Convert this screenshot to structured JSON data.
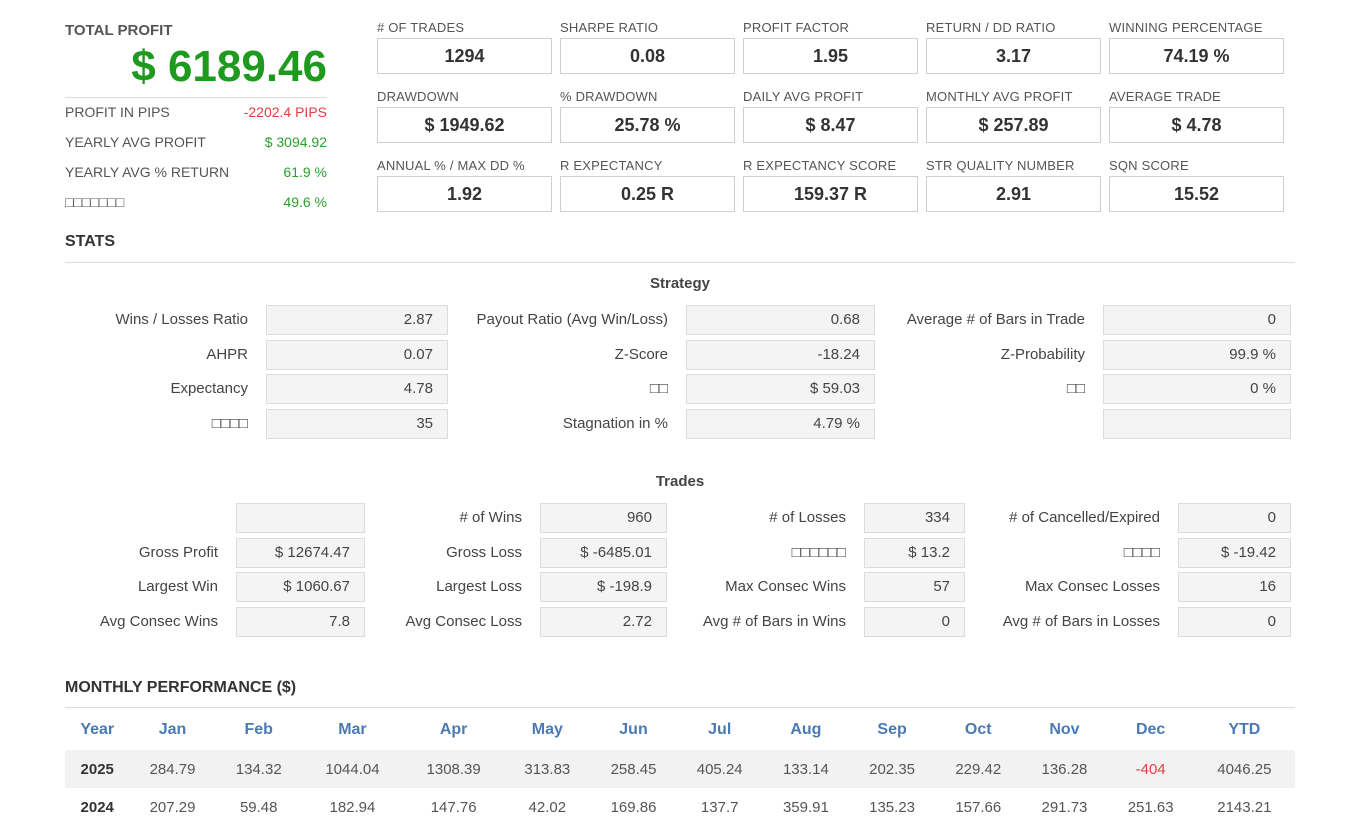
{
  "summary": {
    "total_profit_label": "TOTAL PROFIT",
    "total_profit_value": "$ 6189.46",
    "rows": [
      {
        "label": "PROFIT IN PIPS",
        "value": "-2202.4 PIPS",
        "color": "red"
      },
      {
        "label": "YEARLY AVG PROFIT",
        "value": "$ 3094.92",
        "color": "green"
      },
      {
        "label": "YEARLY AVG % RETURN",
        "value": "61.9 %",
        "color": "green"
      },
      {
        "label": "□□□□□□□",
        "value": "49.6 %",
        "color": "green"
      }
    ]
  },
  "metrics": [
    {
      "label": "# OF TRADES",
      "value": "1294"
    },
    {
      "label": "SHARPE RATIO",
      "value": "0.08"
    },
    {
      "label": "PROFIT FACTOR",
      "value": "1.95"
    },
    {
      "label": "RETURN / DD RATIO",
      "value": "3.17"
    },
    {
      "label": "WINNING PERCENTAGE",
      "value": "74.19 %"
    },
    {
      "label": "DRAWDOWN",
      "value": "$ 1949.62"
    },
    {
      "label": "% DRAWDOWN",
      "value": "25.78 %"
    },
    {
      "label": "DAILY AVG PROFIT",
      "value": "$ 8.47"
    },
    {
      "label": "MONTHLY AVG PROFIT",
      "value": "$ 257.89"
    },
    {
      "label": "AVERAGE TRADE",
      "value": "$ 4.78"
    },
    {
      "label": "ANNUAL % / MAX DD %",
      "value": "1.92"
    },
    {
      "label": "R EXPECTANCY",
      "value": "0.25 R"
    },
    {
      "label": "R EXPECTANCY SCORE",
      "value": "159.37 R"
    },
    {
      "label": "STR QUALITY NUMBER",
      "value": "2.91"
    },
    {
      "label": "SQN SCORE",
      "value": "15.52"
    }
  ],
  "stats_title": "STATS",
  "strategy": {
    "title": "Strategy",
    "rows": [
      [
        {
          "label": "Wins / Losses Ratio",
          "value": "2.87"
        },
        {
          "label": "Payout Ratio (Avg Win/Loss)",
          "value": "0.68"
        },
        {
          "label": "Average # of Bars in Trade",
          "value": "0"
        }
      ],
      [
        {
          "label": "AHPR",
          "value": "0.07"
        },
        {
          "label": "Z-Score",
          "value": "-18.24"
        },
        {
          "label": "Z-Probability",
          "value": "99.9 %"
        }
      ],
      [
        {
          "label": "Expectancy",
          "value": "4.78"
        },
        {
          "label": "□□",
          "value": "$ 59.03"
        },
        {
          "label": "□□",
          "value": "0 %"
        }
      ],
      [
        {
          "label": "□□□□",
          "value": "35"
        },
        {
          "label": "Stagnation in %",
          "value": "4.79 %"
        },
        {
          "label": "",
          "value": ""
        }
      ]
    ]
  },
  "trades": {
    "title": "Trades",
    "rows": [
      [
        {
          "label": "",
          "value": ""
        },
        {
          "label": "# of Wins",
          "value": "960"
        },
        {
          "label": "# of Losses",
          "value": "334"
        },
        {
          "label": "# of Cancelled/Expired",
          "value": "0"
        }
      ],
      [
        {
          "label": "Gross Profit",
          "value": "$ 12674.47"
        },
        {
          "label": "Gross Loss",
          "value": "$ -6485.01"
        },
        {
          "label": "□□□□□□",
          "value": "$ 13.2"
        },
        {
          "label": "□□□□",
          "value": "$ -19.42"
        }
      ],
      [
        {
          "label": "Largest Win",
          "value": "$ 1060.67"
        },
        {
          "label": "Largest Loss",
          "value": "$ -198.9"
        },
        {
          "label": "Max Consec Wins",
          "value": "57"
        },
        {
          "label": "Max Consec Losses",
          "value": "16"
        }
      ],
      [
        {
          "label": "Avg Consec Wins",
          "value": "7.8"
        },
        {
          "label": "Avg Consec Loss",
          "value": "2.72"
        },
        {
          "label": "Avg # of Bars in Wins",
          "value": "0"
        },
        {
          "label": "Avg # of Bars in Losses",
          "value": "0"
        }
      ]
    ]
  },
  "monthly": {
    "title": "MONTHLY PERFORMANCE ($)",
    "headers": [
      "Year",
      "Jan",
      "Feb",
      "Mar",
      "Apr",
      "May",
      "Jun",
      "Jul",
      "Aug",
      "Sep",
      "Oct",
      "Nov",
      "Dec",
      "YTD"
    ],
    "rows": [
      {
        "year": "2025",
        "values": [
          "284.79",
          "134.32",
          "1044.04",
          "1308.39",
          "313.83",
          "258.45",
          "405.24",
          "133.14",
          "202.35",
          "229.42",
          "136.28",
          "-404",
          "4046.25"
        ]
      },
      {
        "year": "2024",
        "values": [
          "207.29",
          "59.48",
          "182.94",
          "147.76",
          "42.02",
          "169.86",
          "137.7",
          "359.91",
          "135.23",
          "157.66",
          "291.73",
          "251.63",
          "2143.21"
        ]
      }
    ]
  },
  "colors": {
    "green": "#2aa02a",
    "red": "#e04040",
    "header_blue": "#4a7ab5"
  }
}
